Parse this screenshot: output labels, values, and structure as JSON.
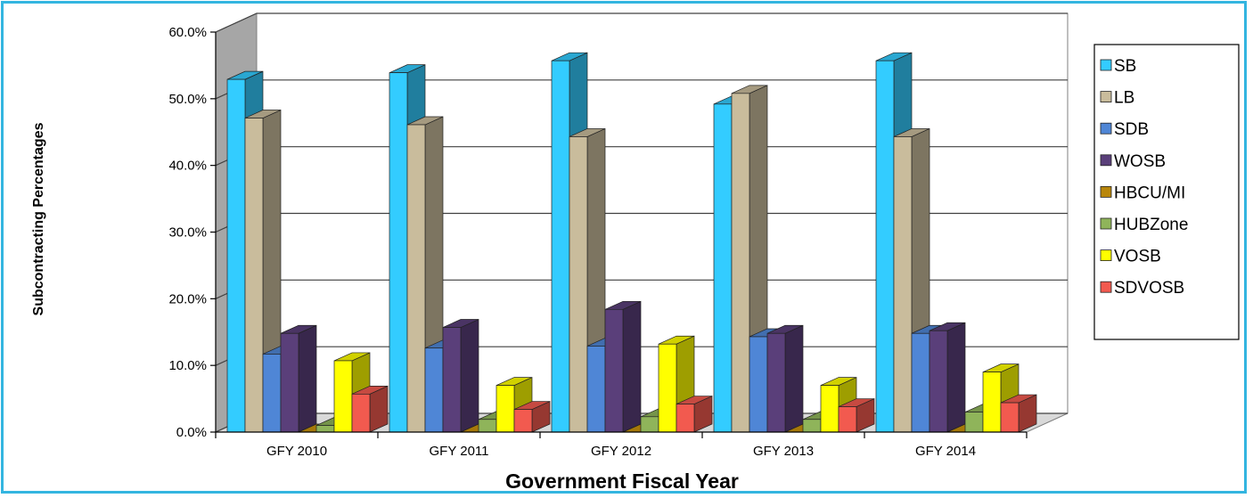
{
  "chart_data": {
    "type": "bar",
    "categories": [
      "GFY 2010",
      "GFY 2011",
      "GFY 2012",
      "GFY 2013",
      "GFY 2014"
    ],
    "series": [
      {
        "name": "SB",
        "color": "#33CCFF",
        "values": [
          52.9,
          53.9,
          55.7,
          49.2,
          55.7
        ]
      },
      {
        "name": "LB",
        "color": "#C9BC9C",
        "values": [
          47.1,
          46.1,
          44.3,
          50.8,
          44.3
        ]
      },
      {
        "name": "SDB",
        "color": "#4F86D6",
        "values": [
          11.7,
          12.6,
          12.9,
          14.3,
          14.8
        ]
      },
      {
        "name": "WOSB",
        "color": "#5A3F7A",
        "values": [
          14.8,
          15.7,
          18.4,
          14.8,
          15.2
        ]
      },
      {
        "name": "HBCU/MI",
        "color": "#B8860B",
        "values": [
          0.0,
          0.0,
          0.0,
          0.0,
          0.0
        ]
      },
      {
        "name": "HUBZone",
        "color": "#8FB45A",
        "values": [
          1.0,
          1.9,
          2.3,
          1.9,
          3.0
        ]
      },
      {
        "name": "VOSB",
        "color": "#FFFF00",
        "values": [
          10.7,
          7.0,
          13.2,
          7.0,
          9.0
        ]
      },
      {
        "name": "SDVOSB",
        "color": "#F25A4F",
        "values": [
          5.7,
          3.4,
          4.2,
          3.8,
          4.4
        ]
      }
    ],
    "xlabel": "Government Fiscal Year",
    "ylabel": "Subcontracting Percentages",
    "ylim": [
      0,
      60
    ],
    "yticks": [
      "0.0%",
      "10.0%",
      "20.0%",
      "30.0%",
      "40.0%",
      "50.0%",
      "60.0%"
    ],
    "grid": true,
    "legend_position": "right",
    "frame_color": "#33B5E0"
  }
}
